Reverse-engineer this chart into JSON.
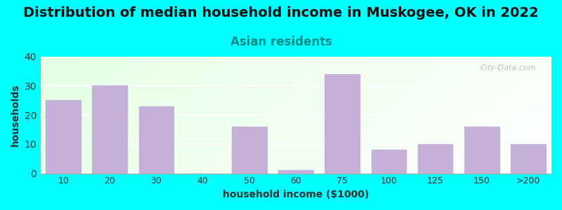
{
  "title": "Distribution of median household income in Muskogee, OK in 2022",
  "subtitle": "Asian residents",
  "xlabel": "household income ($1000)",
  "ylabel": "households",
  "categories": [
    "10",
    "20",
    "30",
    "40",
    "50",
    "60",
    "75",
    "100",
    "125",
    "150",
    ">200"
  ],
  "values": [
    25,
    30,
    23,
    0,
    16,
    1,
    34,
    8,
    10,
    16,
    10
  ],
  "bar_color": "#C4B0D8",
  "background_outer": "#00FFFF",
  "ylim": [
    0,
    40
  ],
  "yticks": [
    0,
    10,
    20,
    30,
    40
  ],
  "title_fontsize": 14,
  "subtitle_fontsize": 12,
  "subtitle_color": "#008B8B",
  "axis_label_fontsize": 10,
  "watermark": "City-Data.com"
}
